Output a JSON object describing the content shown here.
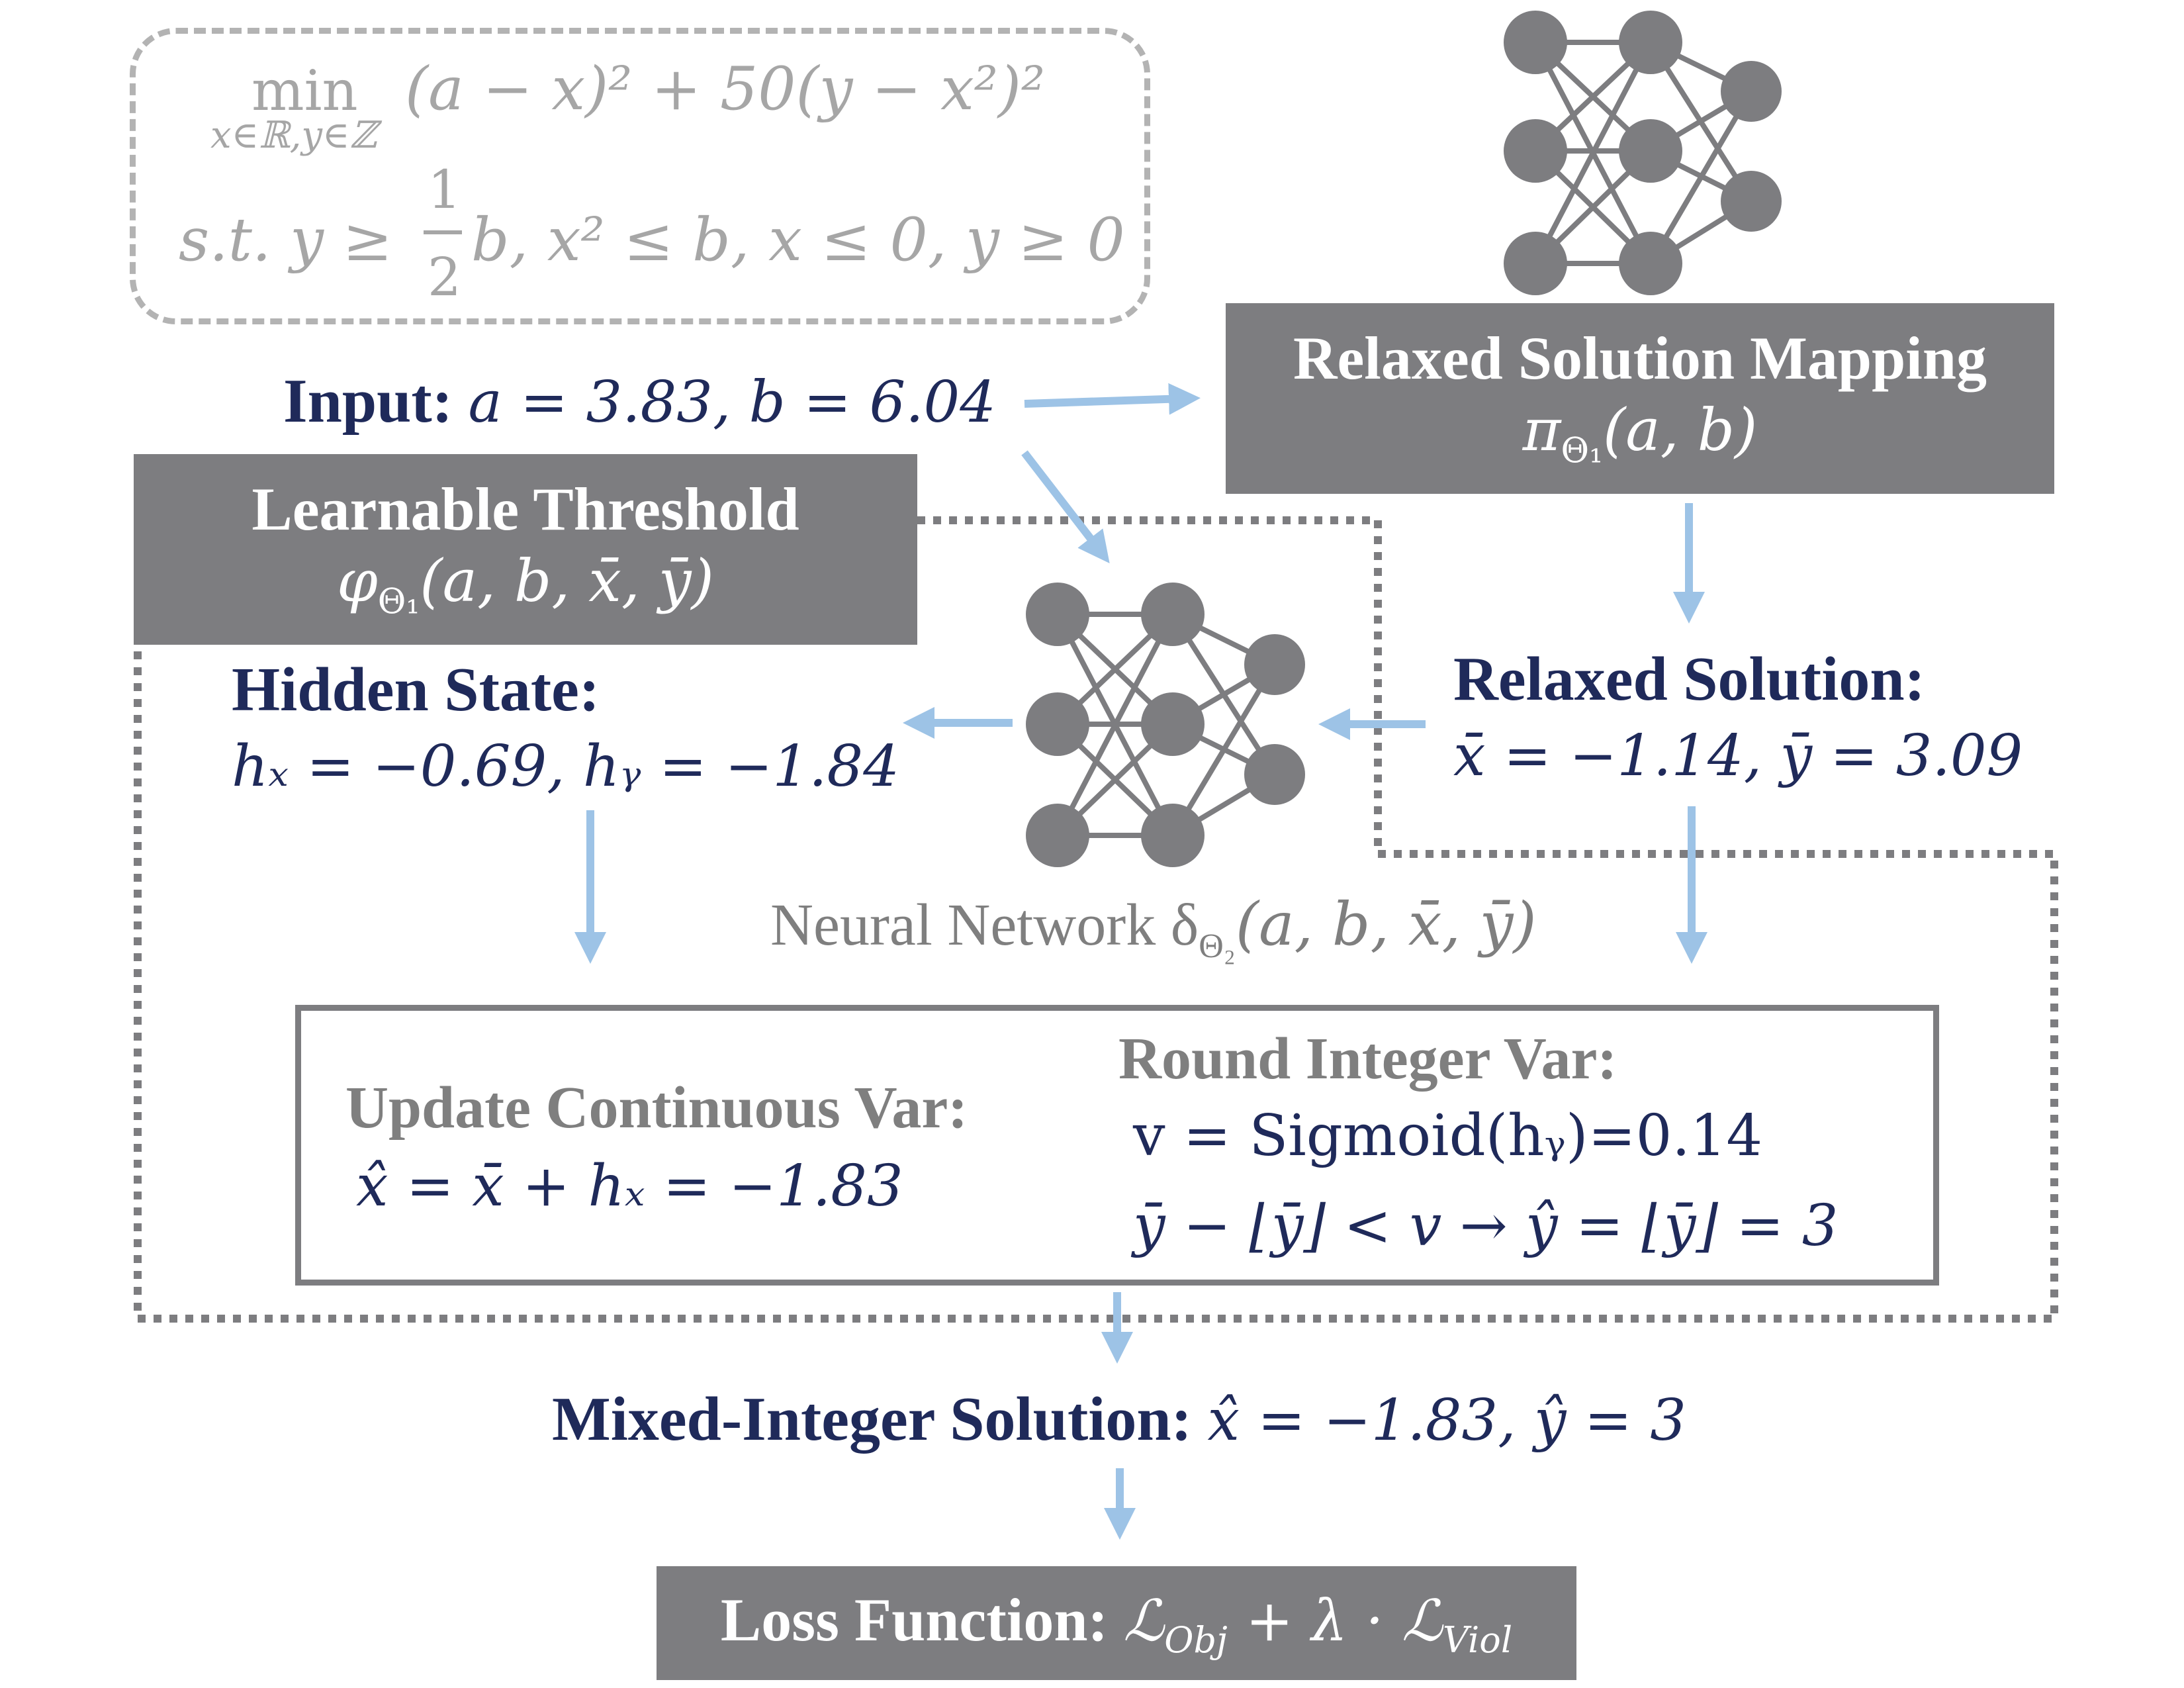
{
  "problem": {
    "objective_min": "min",
    "objective_sub": "x∈ℝ,y∈ℤ",
    "objective_expr": "(a − x)² + 50(y − x²)²",
    "constraint_prefix": "s.t.  y ≥",
    "constraint_frac_num": "1",
    "constraint_frac_den": "2",
    "constraint_rest": "b, x² ≤ b, x ≤ 0, y ≥ 0"
  },
  "input": {
    "label": "Input:",
    "value": "a = 3.83, b = 6.04"
  },
  "relaxed_mapping": {
    "title": "Relaxed Solution Mapping",
    "formula": "π",
    "formula_sub": "Θ₁",
    "formula_args": "(a, b)"
  },
  "learnable_threshold": {
    "title": "Learnable Threshold",
    "formula": "φ",
    "formula_sub": "Θ₁",
    "formula_args": "(a, b, x̄, ȳ)"
  },
  "hidden_state": {
    "label": "Hidden State:",
    "value": "hₓ = −0.69, hᵧ = −1.84"
  },
  "relaxed_solution": {
    "label": "Relaxed Solution:",
    "value": "x̄ = −1.14, ȳ = 3.09"
  },
  "neural_network": {
    "label": "Neural Network δ",
    "label_sub": "Θ₂",
    "label_args": "(a, b, x̄, ȳ)"
  },
  "update_continuous": {
    "title": "Update Continuous Var:",
    "formula": "x̂ = x̄ + hₓ = −1.83"
  },
  "round_integer": {
    "title": "Round Integer Var:",
    "line1": "v = Sigmoid(hᵧ)=0.14",
    "line2": "ȳ − ⌊ȳ⌋ < v → ŷ = ⌊ȳ⌋ = 3"
  },
  "mixed_integer": {
    "label": "Mixed-Integer Solution:",
    "value": "x̂ = −1.83, ŷ = 3"
  },
  "loss_function": {
    "label": "Loss Function:",
    "formula": "ℒ",
    "sub1": "Obj",
    "middle": " + λ · ℒ",
    "sub2": "Viol"
  },
  "colors": {
    "navy": "#1f2a5a",
    "box_grey": "#7d7d80",
    "arrow_blue": "#9dc3e6",
    "muted_grey": "#a6a6a6"
  }
}
